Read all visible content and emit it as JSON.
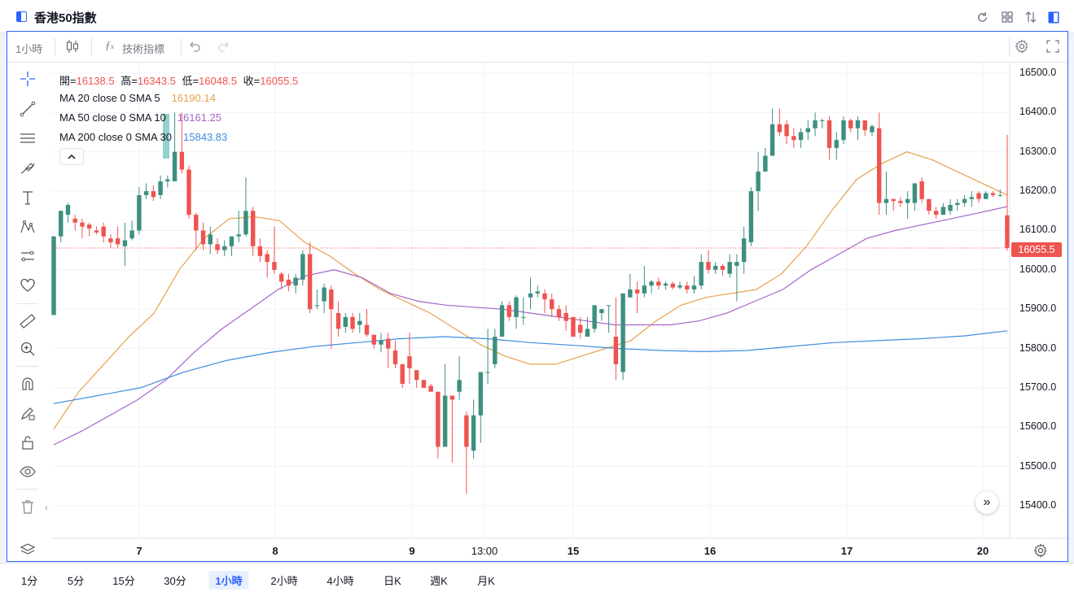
{
  "title": "香港50指數",
  "toolbar": {
    "interval": "1小時",
    "indicators_label": "技術指標"
  },
  "legend": {
    "ohlc": {
      "open_label": "開=",
      "open": "16138.5",
      "high_label": "高=",
      "high": "16343.5",
      "low_label": "低=",
      "low": "16048.5",
      "close_label": "收=",
      "close": "16055.5"
    },
    "ma": [
      {
        "label": "MA 20 close 0 SMA 5",
        "value": "16190.14",
        "color": "#e8a04a"
      },
      {
        "label": "MA 50 close 0 SMA 10",
        "value": "16161.25",
        "color": "#a565c9"
      },
      {
        "label": "MA 200 close 0 SMA 30",
        "value": "15843.83",
        "color": "#3f8de0"
      }
    ]
  },
  "colors": {
    "up": "#26a69a",
    "up_dark": "#3d8f7f",
    "down": "#ef5350",
    "accent": "#2962ff"
  },
  "y_axis": {
    "ticks": [
      "16500.0",
      "16400.0",
      "16300.0",
      "16200.0",
      "16100.0",
      "16000.0",
      "15900.0",
      "15800.0",
      "15700.0",
      "15600.0",
      "15500.0",
      "15400.0"
    ]
  },
  "last_price": "16055.5",
  "x_axis": {
    "ticks": [
      {
        "label": "7",
        "bold": true
      },
      {
        "label": "8",
        "bold": true
      },
      {
        "label": "9",
        "bold": true
      },
      {
        "label": "13:00",
        "bold": false
      },
      {
        "label": "15",
        "bold": true
      },
      {
        "label": "16",
        "bold": true
      },
      {
        "label": "17",
        "bold": true
      },
      {
        "label": "20",
        "bold": true
      }
    ]
  },
  "timeframes": [
    {
      "label": "1分",
      "active": false
    },
    {
      "label": "5分",
      "active": false
    },
    {
      "label": "15分",
      "active": false
    },
    {
      "label": "30分",
      "active": false
    },
    {
      "label": "1小時",
      "active": true
    },
    {
      "label": "2小時",
      "active": false
    },
    {
      "label": "4小時",
      "active": false
    },
    {
      "label": "日K",
      "active": false
    },
    {
      "label": "週K",
      "active": false
    },
    {
      "label": "月K",
      "active": false
    }
  ],
  "chart_data": {
    "type": "candlestick",
    "interval": "1小時",
    "y_range": [
      15350,
      16540
    ],
    "x_ticks": [
      "7",
      "8",
      "9",
      "13:00",
      "15",
      "16",
      "17",
      "20"
    ],
    "candles": [
      [
        15885,
        16085,
        16085,
        15885
      ],
      [
        16085,
        16150,
        16150,
        16070
      ],
      [
        16140,
        16165,
        16170,
        16120
      ],
      [
        16130,
        16120,
        16140,
        16100
      ],
      [
        16120,
        16110,
        16130,
        16080
      ],
      [
        16115,
        16105,
        16120,
        16085
      ],
      [
        16100,
        16095,
        16110,
        16090
      ],
      [
        16110,
        16085,
        16120,
        16070
      ],
      [
        16080,
        16070,
        16090,
        16055
      ],
      [
        16080,
        16065,
        16110,
        16055
      ],
      [
        16060,
        16075,
        16120,
        16010
      ],
      [
        16080,
        16100,
        16125,
        16075
      ],
      [
        16100,
        16190,
        16210,
        16090
      ],
      [
        16190,
        16200,
        16220,
        16180
      ],
      [
        16200,
        16185,
        16215,
        16175
      ],
      [
        16190,
        16225,
        16240,
        16180
      ],
      [
        16225,
        16230,
        16240,
        16210
      ],
      [
        16225,
        16300,
        16400,
        16225
      ],
      [
        16300,
        16255,
        16400,
        16245
      ],
      [
        16255,
        16140,
        16265,
        16130
      ],
      [
        16140,
        16100,
        16145,
        16050
      ],
      [
        16100,
        16065,
        16120,
        16050
      ],
      [
        16065,
        16090,
        16110,
        16040
      ],
      [
        16065,
        16050,
        16080,
        16040
      ],
      [
        16050,
        16060,
        16075,
        16035
      ],
      [
        16060,
        16085,
        16085,
        16035
      ],
      [
        16085,
        16090,
        16150,
        16070
      ],
      [
        16090,
        16150,
        16235,
        16085
      ],
      [
        16150,
        16060,
        16160,
        16035
      ],
      [
        16060,
        16035,
        16080,
        16020
      ],
      [
        16040,
        16020,
        16050,
        15980
      ],
      [
        16020,
        16000,
        16110,
        15990
      ],
      [
        15990,
        15970,
        15995,
        15950
      ],
      [
        15975,
        15960,
        15990,
        15945
      ],
      [
        15960,
        15980,
        15990,
        15940
      ],
      [
        15975,
        16040,
        16050,
        15960
      ],
      [
        16040,
        15900,
        16070,
        15890
      ],
      [
        15910,
        15910,
        15950,
        15900
      ],
      [
        15920,
        15955,
        15965,
        15890
      ],
      [
        15950,
        15900,
        15960,
        15800
      ],
      [
        15890,
        15850,
        15920,
        15830
      ],
      [
        15855,
        15880,
        15890,
        15840
      ],
      [
        15880,
        15850,
        15890,
        15840
      ],
      [
        15860,
        15870,
        15890,
        15840
      ],
      [
        15860,
        15835,
        15900,
        15830
      ],
      [
        15835,
        15810,
        15830,
        15800
      ],
      [
        15810,
        15820,
        15840,
        15790
      ],
      [
        15825,
        15800,
        15840,
        15750
      ],
      [
        15795,
        15760,
        15820,
        15750
      ],
      [
        15760,
        15710,
        15760,
        15700
      ],
      [
        15780,
        15750,
        15840,
        15710
      ],
      [
        15745,
        15720,
        15730,
        15700
      ],
      [
        15720,
        15700,
        15720,
        15700
      ],
      [
        15705,
        15690,
        15710,
        15700
      ],
      [
        15690,
        15550,
        15690,
        15520
      ],
      [
        15550,
        15680,
        15760,
        15590
      ],
      [
        15680,
        15670,
        15680,
        15510
      ],
      [
        15690,
        15720,
        15780,
        15670
      ],
      [
        15630,
        15550,
        15640,
        15430
      ],
      [
        15540,
        15630,
        15670,
        15520
      ],
      [
        15630,
        15740,
        15740,
        15560
      ],
      [
        15740,
        15740,
        15850,
        15710
      ],
      [
        15760,
        15830,
        15850,
        15750
      ],
      [
        15830,
        15910,
        15920,
        15830
      ],
      [
        15910,
        15880,
        15920,
        15870
      ],
      [
        15880,
        15930,
        15935,
        15850
      ],
      [
        15880,
        15880,
        15930,
        15860
      ],
      [
        15930,
        15940,
        15980,
        15900
      ],
      [
        15940,
        15945,
        15960,
        15930
      ],
      [
        15940,
        15925,
        15950,
        15890
      ],
      [
        15925,
        15900,
        15940,
        15880
      ],
      [
        15900,
        15880,
        15910,
        15870
      ],
      [
        15890,
        15870,
        15910,
        15845
      ],
      [
        15880,
        15830,
        15880,
        15840
      ],
      [
        15860,
        15840,
        15880,
        15825
      ],
      [
        15830,
        15850,
        15880,
        15840
      ],
      [
        15850,
        15910,
        15910,
        15840
      ],
      [
        15890,
        15900,
        15900,
        15870
      ],
      [
        15910,
        15910,
        15910,
        15840
      ],
      [
        15830,
        15760,
        15930,
        15720
      ],
      [
        15740,
        15940,
        15940,
        15720
      ],
      [
        15930,
        15950,
        15990,
        15930
      ],
      [
        15950,
        15940,
        15970,
        15890
      ],
      [
        15940,
        15960,
        16010,
        15930
      ],
      [
        15960,
        15970,
        15975,
        15940
      ],
      [
        15970,
        15960,
        15980,
        15950
      ],
      [
        15960,
        15965,
        15970,
        15950
      ],
      [
        15965,
        15955,
        15970,
        15950
      ],
      [
        15955,
        15960,
        15970,
        15950
      ],
      [
        15960,
        15950,
        15970,
        15940
      ],
      [
        15950,
        15960,
        15985,
        15940
      ],
      [
        15960,
        16020,
        16040,
        15950
      ],
      [
        16020,
        16000,
        16050,
        15990
      ],
      [
        16000,
        16010,
        16020,
        15990
      ],
      [
        16010,
        16000,
        16015,
        15985
      ],
      [
        15990,
        16020,
        16040,
        15980
      ],
      [
        16010,
        16020,
        16040,
        15920
      ],
      [
        16020,
        16080,
        16110,
        15990
      ],
      [
        16070,
        16200,
        16210,
        16060
      ],
      [
        16200,
        16250,
        16300,
        16150
      ],
      [
        16250,
        16290,
        16310,
        16250
      ],
      [
        16290,
        16370,
        16410,
        16300
      ],
      [
        16370,
        16350,
        16410,
        16340
      ],
      [
        16370,
        16340,
        16380,
        16320
      ],
      [
        16340,
        16330,
        16360,
        16310
      ],
      [
        16330,
        16350,
        16360,
        16310
      ],
      [
        16350,
        16360,
        16380,
        16330
      ],
      [
        16360,
        16380,
        16400,
        16340
      ],
      [
        16380,
        16380,
        16385,
        16360
      ],
      [
        16380,
        16310,
        16390,
        16280
      ],
      [
        16310,
        16330,
        16350,
        16280
      ],
      [
        16330,
        16380,
        16390,
        16320
      ],
      [
        16380,
        16360,
        16385,
        16350
      ],
      [
        16360,
        16380,
        16390,
        16330
      ],
      [
        16380,
        16355,
        16370,
        16340
      ],
      [
        16350,
        16365,
        16370,
        16340
      ],
      [
        16360,
        16170,
        16400,
        16140
      ],
      [
        16170,
        16180,
        16250,
        16140
      ],
      [
        16180,
        16175,
        16180,
        16150
      ],
      [
        16175,
        16170,
        16185,
        16160
      ],
      [
        16170,
        16180,
        16200,
        16130
      ],
      [
        16170,
        16220,
        16220,
        16150
      ],
      [
        16225,
        16180,
        16235,
        16170
      ],
      [
        16180,
        16150,
        16180,
        16140
      ],
      [
        16150,
        16140,
        16160,
        16130
      ],
      [
        16140,
        16160,
        16170,
        16140
      ],
      [
        16150,
        16165,
        16180,
        16140
      ],
      [
        16165,
        16170,
        16180,
        16150
      ],
      [
        16170,
        16180,
        16190,
        16160
      ],
      [
        16180,
        16185,
        16200,
        16160
      ],
      [
        16195,
        16180,
        16200,
        16170
      ],
      [
        16180,
        16195,
        16200,
        16185
      ],
      [
        16195,
        16190,
        16200,
        16185
      ],
      [
        16190,
        16190,
        16205,
        16185
      ],
      [
        16138.5,
        16055.5,
        16343.5,
        16048.5
      ]
    ],
    "ma_series": [
      {
        "name": "MA 20 close 0 SMA 5",
        "color": "#e8a04a",
        "points": [
          15595,
          15690,
          15760,
          15830,
          15890,
          16000,
          16080,
          16130,
          16135,
          16125,
          16070,
          16035,
          15990,
          15950,
          15920,
          15890,
          15850,
          15810,
          15780,
          15760,
          15760,
          15780,
          15800,
          15820,
          15870,
          15910,
          15930,
          15940,
          15950,
          15990,
          16060,
          16150,
          16230,
          16270,
          16300,
          16280,
          16250,
          16220,
          16190
        ]
      },
      {
        "name": "MA 50 close 0 SMA 10",
        "color": "#a565c9",
        "points": [
          15555,
          15590,
          15630,
          15670,
          15720,
          15790,
          15850,
          15900,
          15950,
          15985,
          16000,
          15980,
          15940,
          15920,
          15910,
          15905,
          15900,
          15890,
          15880,
          15870,
          15860,
          15860,
          15860,
          15870,
          15890,
          15920,
          15950,
          16000,
          16040,
          16080,
          16100,
          16115,
          16130,
          16145,
          16161
        ]
      },
      {
        "name": "MA 200 close 0 SMA 30",
        "color": "#3f8de0",
        "points": [
          15660,
          15680,
          15700,
          15740,
          15770,
          15790,
          15805,
          15815,
          15825,
          15830,
          15825,
          15815,
          15808,
          15800,
          15795,
          15792,
          15795,
          15805,
          15815,
          15820,
          15825,
          15832,
          15845
        ]
      }
    ]
  }
}
